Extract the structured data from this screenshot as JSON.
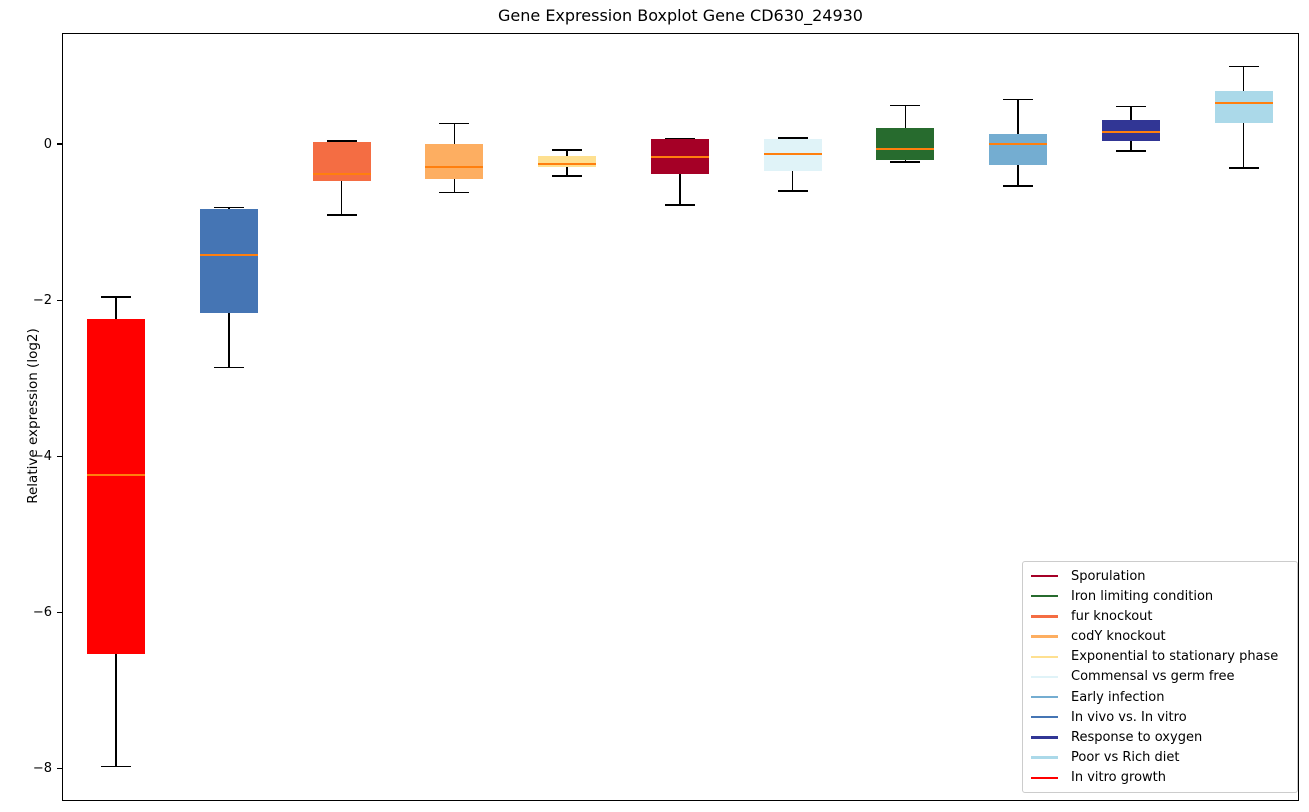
{
  "title": "Gene Expression Boxplot Gene CD630_24930",
  "chart_data": {
    "type": "boxplot",
    "title": "Gene Expression Boxplot Gene CD630_24930",
    "xlabel": "",
    "ylabel": "Relative expression (log2)",
    "ylim": [
      -8.41,
      1.42
    ],
    "yticks": [
      0,
      -2,
      -4,
      -6,
      -8
    ],
    "ytick_labels": [
      "0",
      "−2",
      "−4",
      "−6",
      "−8"
    ],
    "grid": false,
    "legend_position": "lower right",
    "median_color": "#ff7f0e",
    "whisker_color": "#000000",
    "legend_border_color": "#cccccc",
    "boxes": [
      {
        "label": "In vitro growth",
        "color": "#ff0000",
        "whislo": -7.97,
        "q1": -6.53,
        "med": -4.24,
        "q3": -2.24,
        "whishi": -1.96
      },
      {
        "label": "In vivo vs. In vitro",
        "color": "#4575b4",
        "whislo": -2.86,
        "q1": -2.16,
        "med": -1.42,
        "q3": -0.83,
        "whishi": -0.81
      },
      {
        "label": "fur knockout",
        "color": "#f46d43",
        "whislo": -0.91,
        "q1": -0.47,
        "med": -0.38,
        "q3": 0.02,
        "whishi": 0.04
      },
      {
        "label": "codY knockout",
        "color": "#fdae61",
        "whislo": -0.62,
        "q1": -0.45,
        "med": -0.29,
        "q3": 0.0,
        "whishi": 0.26
      },
      {
        "label": "Exponential to stationary phase",
        "color": "#fee090",
        "whislo": -0.41,
        "q1": -0.3,
        "med": -0.26,
        "q3": -0.15,
        "whishi": -0.08
      },
      {
        "label": "Sporulation",
        "color": "#a50026",
        "whislo": -0.78,
        "q1": -0.38,
        "med": -0.17,
        "q3": 0.06,
        "whishi": 0.07
      },
      {
        "label": "Commensal vs germ free",
        "color": "#e0f3f8",
        "whislo": -0.6,
        "q1": -0.35,
        "med": -0.13,
        "q3": 0.07,
        "whishi": 0.08
      },
      {
        "label": "Iron limiting condition",
        "color": "#276b2e",
        "whislo": -0.23,
        "q1": -0.2,
        "med": -0.06,
        "q3": 0.2,
        "whishi": 0.49
      },
      {
        "label": "Early infection",
        "color": "#74add1",
        "whislo": -0.54,
        "q1": -0.27,
        "med": 0.0,
        "q3": 0.13,
        "whishi": 0.57
      },
      {
        "label": "Response to oxygen",
        "color": "#313695",
        "whislo": -0.09,
        "q1": 0.04,
        "med": 0.15,
        "q3": 0.31,
        "whishi": 0.48
      },
      {
        "label": "Poor vs Rich diet",
        "color": "#abd9e9",
        "whislo": -0.31,
        "q1": 0.27,
        "med": 0.53,
        "q3": 0.68,
        "whishi": 0.99
      }
    ],
    "legend": [
      {
        "label": "Sporulation",
        "color": "#a50026"
      },
      {
        "label": "Iron limiting condition",
        "color": "#276b2e"
      },
      {
        "label": "fur knockout",
        "color": "#f46d43"
      },
      {
        "label": "codY knockout",
        "color": "#fdae61"
      },
      {
        "label": "Exponential to stationary phase",
        "color": "#fee090"
      },
      {
        "label": "Commensal vs germ free",
        "color": "#e0f3f8"
      },
      {
        "label": "Early infection",
        "color": "#74add1"
      },
      {
        "label": "In vivo vs. In vitro",
        "color": "#4575b4"
      },
      {
        "label": "Response to oxygen",
        "color": "#313695"
      },
      {
        "label": "Poor vs Rich diet",
        "color": "#abd9e9"
      },
      {
        "label": "In vitro growth",
        "color": "#ff0000"
      }
    ]
  }
}
